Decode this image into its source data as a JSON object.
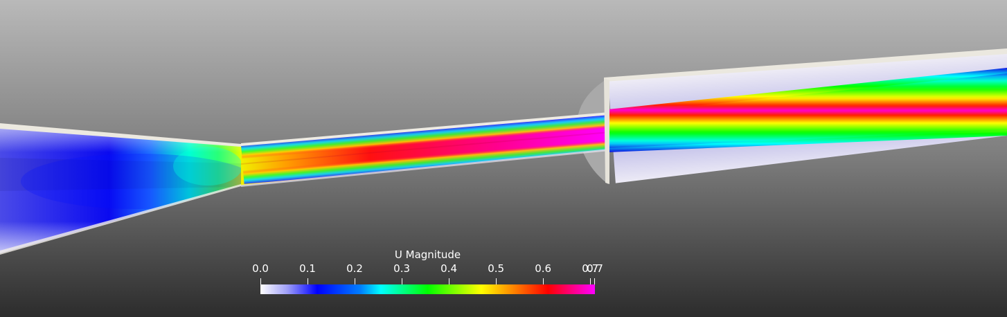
{
  "colorbar": {
    "title": "U Magnitude",
    "range": [
      0.0,
      0.71
    ],
    "tick_labels": [
      "0.0",
      "0.1",
      "0.2",
      "0.3",
      "0.4",
      "0.5",
      "0.6",
      "0.7",
      "0.7"
    ],
    "tick_values": [
      0.0,
      0.1,
      0.2,
      0.3,
      0.4,
      0.5,
      0.6,
      0.7,
      0.71
    ],
    "colormap": [
      "#ffffff",
      "#0000ff",
      "#00ffff",
      "#00ff00",
      "#ffff00",
      "#ff8000",
      "#ff0000",
      "#ff00ff"
    ]
  },
  "colors": {
    "background_top": "#b8b8b8",
    "background_bottom": "#2e2e2e",
    "wall": "#ece9e2",
    "nozzle_low_velocity": "#1a1aff",
    "jet_core": "#ff00ff",
    "outer_pipe_fluid": "#d8d4ef"
  }
}
